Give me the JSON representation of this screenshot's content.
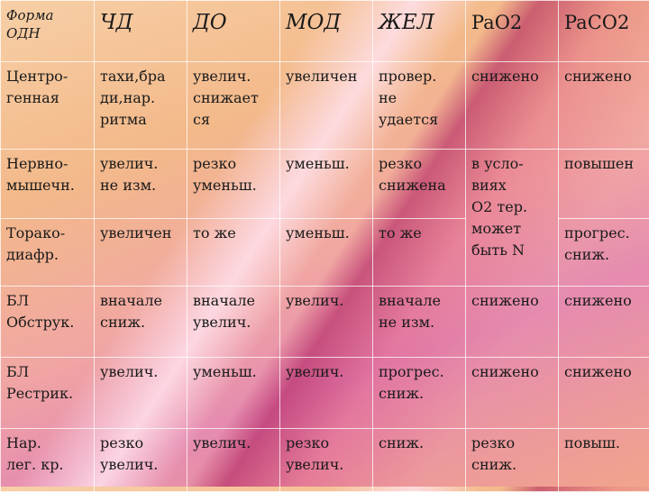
{
  "headers": [
    "Форма\nОДН",
    "ЧД",
    "ДО",
    "МОД",
    "ЖЕЛ",
    "PaO2",
    "PaCO2"
  ],
  "rows": [
    [
      "Центро-\nгенная",
      "тахи,бра\nди,нар.\nритма",
      "увелич.\nснижает\nся",
      "увеличен",
      "провер.\nне\nудается",
      "снижено",
      "снижено"
    ],
    [
      "Нервно-\nмышечн.",
      "увелич.\nне изм.",
      "резко\nуменьш.",
      "уменьш.",
      "резко\nснижена",
      "в усло-\nвиях\nO2 тер.\nможет\nбыть N",
      "повышен"
    ],
    [
      "Торако-\nдиафр.",
      "увеличен",
      "то же",
      "уменьш.",
      "то же",
      "",
      "прогрес.\nсниж."
    ],
    [
      "БЛ\nОбструк.",
      "вначале\nсниж.",
      "вначале\nувелич.",
      "увелич.",
      "вначале\nне изм.",
      "снижено",
      "снижено"
    ],
    [
      "БЛ\nРестрик.",
      "увелич.",
      "уменьш.",
      "увелич.",
      "прогрес.\nсниж.",
      "снижено",
      "снижено"
    ],
    [
      "Нар.\nлег. кр.",
      "резко\nувелич.",
      "увелич.",
      "резко\nувелич.",
      "сниж.",
      "резко\nсниж.",
      "повыш."
    ]
  ]
}
